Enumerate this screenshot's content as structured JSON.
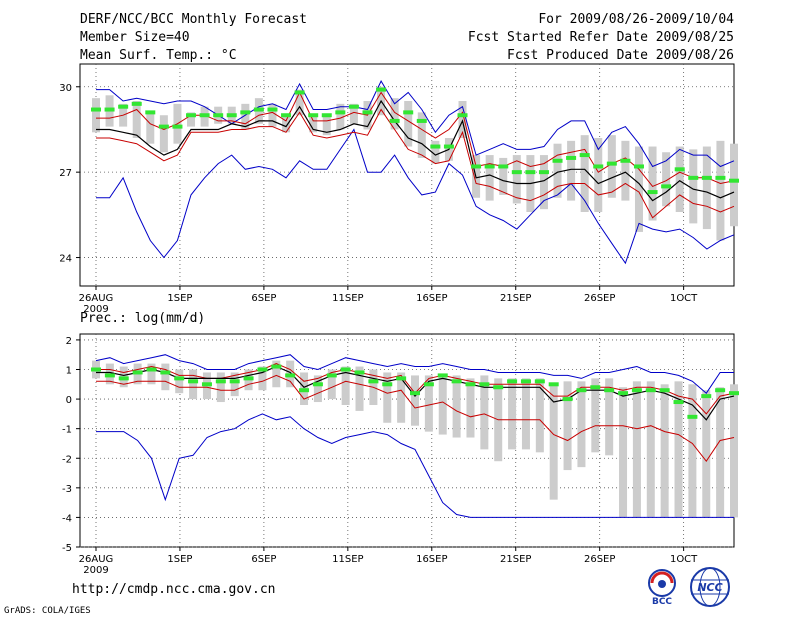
{
  "header": {
    "title": "DERF/NCC/BCC Monthly Forecast",
    "member_size": "Member Size=40",
    "variable": "Mean Surf. Temp.: °C",
    "period": "For 2009/08/26-2009/10/04",
    "fcst_started": "Fcst Started Refer Date 2009/08/25",
    "fcst_produced": "Fcst Produced Date 2009/08/26"
  },
  "footer": {
    "url": "http://cmdp.ncc.cma.gov.cn",
    "credit": "GrADS: COLA/IGES"
  },
  "logos": {
    "bcc_text": "BCC",
    "ncc_text": "NCC"
  },
  "colors": {
    "max_min": "#0000c8",
    "spread": "#c80000",
    "mean": "#000000",
    "median": "#32e632",
    "box": "#cccccc"
  },
  "chart_data": [
    {
      "type": "line",
      "title": "Mean Surf. Temp.: °C",
      "ylabel": "°C",
      "ylim": [
        23,
        30.8
      ],
      "yticks": [
        24,
        27,
        30
      ],
      "ytick_labels": [
        "24",
        "27",
        "30"
      ],
      "xticks": [
        0,
        5,
        10,
        15,
        20,
        25,
        30,
        35
      ],
      "xtick_labels": [
        "26AUG",
        "1SEP",
        "6SEP",
        "11SEP",
        "16SEP",
        "21SEP",
        "26SEP",
        "1OCT"
      ],
      "xsub_label": "2009",
      "days": 40,
      "series": [
        {
          "name": "max",
          "role": "max",
          "values": [
            29.9,
            29.9,
            29.5,
            29.6,
            29.5,
            29.4,
            29.5,
            29.5,
            29.3,
            29.0,
            28.7,
            29.0,
            29.3,
            29.4,
            29.2,
            30.1,
            29.2,
            29.2,
            29.3,
            29.3,
            29.2,
            30.2,
            29.4,
            29.8,
            29.2,
            28.4,
            29.0,
            29.3,
            27.6,
            27.8,
            28.0,
            27.8,
            27.8,
            27.9,
            28.5,
            28.8,
            28.8,
            27.8,
            28.4,
            28.6,
            28.0,
            27.2,
            27.4,
            27.8,
            27.6,
            27.6,
            27.2,
            27.4
          ]
        },
        {
          "name": "upper",
          "role": "spread",
          "values": [
            28.9,
            28.9,
            29.0,
            29.2,
            28.7,
            28.5,
            28.7,
            29.0,
            29.0,
            28.8,
            28.8,
            28.7,
            29.0,
            29.1,
            28.8,
            29.8,
            28.8,
            28.8,
            28.9,
            29.1,
            29.0,
            29.8,
            29.1,
            28.8,
            28.5,
            28.2,
            28.5,
            29.1,
            27.2,
            27.3,
            27.2,
            27.4,
            27.2,
            27.3,
            27.6,
            27.7,
            27.8,
            27.0,
            27.3,
            27.5,
            27.1,
            26.5,
            26.7,
            27.0,
            26.8,
            26.8,
            26.6,
            26.7
          ]
        },
        {
          "name": "mean",
          "role": "mean",
          "values": [
            28.5,
            28.5,
            28.4,
            28.3,
            27.9,
            27.6,
            27.8,
            28.5,
            28.5,
            28.5,
            28.7,
            28.6,
            28.8,
            28.8,
            28.6,
            29.3,
            28.5,
            28.4,
            28.5,
            28.7,
            28.6,
            29.5,
            28.8,
            28.2,
            28.0,
            27.6,
            27.8,
            28.8,
            26.8,
            26.9,
            26.7,
            26.6,
            26.6,
            26.7,
            27.0,
            27.1,
            27.1,
            26.6,
            26.8,
            27.0,
            26.6,
            26.0,
            26.3,
            26.7,
            26.4,
            26.3,
            26.1,
            26.3
          ]
        },
        {
          "name": "lower",
          "role": "spread",
          "values": [
            28.2,
            28.2,
            28.1,
            28.0,
            27.7,
            27.4,
            27.6,
            28.4,
            28.4,
            28.4,
            28.5,
            28.5,
            28.6,
            28.6,
            28.4,
            29.1,
            28.3,
            28.2,
            28.3,
            28.4,
            28.3,
            29.2,
            28.5,
            27.8,
            27.6,
            27.3,
            27.4,
            28.4,
            26.6,
            26.5,
            26.3,
            26.1,
            26.0,
            26.2,
            26.5,
            26.6,
            26.6,
            26.2,
            26.3,
            26.6,
            26.3,
            25.4,
            25.8,
            26.2,
            25.9,
            25.8,
            25.6,
            25.8
          ]
        },
        {
          "name": "min",
          "role": "min",
          "values": [
            26.1,
            26.1,
            26.8,
            25.6,
            24.6,
            24.0,
            24.6,
            26.2,
            26.8,
            27.3,
            27.6,
            27.1,
            27.2,
            27.1,
            26.8,
            27.4,
            27.1,
            27.1,
            27.8,
            28.5,
            27.0,
            27.0,
            27.6,
            26.8,
            26.2,
            26.3,
            27.3,
            26.9,
            25.8,
            25.5,
            25.3,
            25.0,
            25.5,
            26.0,
            26.2,
            26.6,
            26.0,
            25.2,
            24.5,
            23.8,
            25.2,
            25.0,
            24.9,
            25.0,
            24.7,
            24.3,
            24.6,
            24.8,
            25.2
          ]
        },
        {
          "name": "median",
          "role": "median",
          "values": [
            29.2,
            29.2,
            29.3,
            29.4,
            29.1,
            28.6,
            28.6,
            29.0,
            29.0,
            29.0,
            29.0,
            29.1,
            29.2,
            29.2,
            29.0,
            29.8,
            29.0,
            29.0,
            29.1,
            29.3,
            29.1,
            29.9,
            28.8,
            29.1,
            28.8,
            27.9,
            27.9,
            29.0,
            27.2,
            27.2,
            27.2,
            27.0,
            27.0,
            27.0,
            27.4,
            27.5,
            27.6,
            27.2,
            27.3,
            27.4,
            27.2,
            26.3,
            26.5,
            27.1,
            26.8,
            26.8,
            26.8,
            26.7
          ]
        },
        {
          "name": "box_low",
          "role": "box",
          "values": [
            28.4,
            28.6,
            28.6,
            28.2,
            28.0,
            27.7,
            28.0,
            28.6,
            28.6,
            28.7,
            28.7,
            28.5,
            28.7,
            28.6,
            28.4,
            29.0,
            28.4,
            28.3,
            28.5,
            28.7,
            28.5,
            29.0,
            28.5,
            27.9,
            27.5,
            27.3,
            27.4,
            28.2,
            26.1,
            26.0,
            26.2,
            25.9,
            25.6,
            25.7,
            26.1,
            26.0,
            25.6,
            25.6,
            26.1,
            26.0,
            24.9,
            25.3,
            25.8,
            25.6,
            25.2,
            25.0,
            24.6,
            25.1,
            25.4
          ]
        },
        {
          "name": "box_high",
          "role": "box",
          "values": [
            29.6,
            29.7,
            29.4,
            29.5,
            29.1,
            29.0,
            29.4,
            29.1,
            29.3,
            29.3,
            29.3,
            29.4,
            29.6,
            29.4,
            29.0,
            29.9,
            29.0,
            29.0,
            29.4,
            29.4,
            29.5,
            30.0,
            29.6,
            29.5,
            29.1,
            28.1,
            28.2,
            29.5,
            27.6,
            27.6,
            27.5,
            27.6,
            27.6,
            27.6,
            28.0,
            28.1,
            28.3,
            28.2,
            28.3,
            28.1,
            27.9,
            27.9,
            27.7,
            27.9,
            27.8,
            27.9,
            28.1,
            28.0,
            28.0
          ]
        }
      ]
    },
    {
      "type": "line",
      "title": "Prec.: log(mm/d)",
      "ylabel": "log(mm/d)",
      "ylim": [
        -5,
        2.2
      ],
      "yticks": [
        -5,
        -4,
        -3,
        -2,
        -1,
        0,
        1,
        2
      ],
      "ytick_labels": [
        "-5",
        "-4",
        "-3",
        "-2",
        "-1",
        "0",
        "1",
        "2"
      ],
      "xticks": [
        0,
        5,
        10,
        15,
        20,
        25,
        30,
        35
      ],
      "xtick_labels": [
        "26AUG",
        "1SEP",
        "6SEP",
        "11SEP",
        "16SEP",
        "21SEP",
        "26SEP",
        "1OCT"
      ],
      "xsub_label": "2009",
      "days": 40,
      "series": [
        {
          "name": "max",
          "role": "max",
          "values": [
            1.3,
            1.4,
            1.2,
            1.3,
            1.4,
            1.5,
            1.3,
            1.2,
            1.0,
            1.0,
            1.0,
            1.2,
            1.3,
            1.4,
            1.5,
            1.1,
            1.0,
            1.2,
            1.4,
            1.3,
            1.2,
            1.1,
            1.2,
            1.1,
            1.1,
            1.2,
            1.1,
            1.0,
            1.0,
            0.9,
            0.9,
            0.9,
            0.9,
            0.8,
            0.8,
            0.7,
            0.9,
            0.9,
            1.0,
            1.1,
            0.9,
            0.9,
            0.8,
            0.6,
            0.2,
            0.9,
            0.9
          ]
        },
        {
          "name": "upper",
          "role": "spread",
          "values": [
            1.0,
            1.0,
            0.9,
            1.0,
            1.1,
            1.0,
            0.8,
            0.8,
            0.7,
            0.7,
            0.8,
            0.9,
            1.0,
            1.2,
            1.0,
            0.6,
            0.7,
            0.9,
            1.0,
            0.9,
            0.8,
            0.7,
            0.8,
            0.2,
            0.7,
            0.8,
            0.7,
            0.6,
            0.5,
            0.5,
            0.5,
            0.5,
            0.5,
            0.1,
            0.1,
            0.4,
            0.4,
            0.4,
            0.3,
            0.4,
            0.4,
            0.3,
            0.1,
            0.0,
            -0.5,
            0.1,
            0.2
          ]
        },
        {
          "name": "mean",
          "role": "mean",
          "values": [
            0.9,
            0.9,
            0.8,
            0.9,
            1.0,
            0.9,
            0.7,
            0.7,
            0.7,
            0.7,
            0.7,
            0.8,
            0.9,
            1.1,
            0.9,
            0.4,
            0.6,
            0.8,
            0.9,
            0.8,
            0.7,
            0.6,
            0.7,
            0.1,
            0.6,
            0.7,
            0.6,
            0.5,
            0.4,
            0.4,
            0.4,
            0.4,
            0.4,
            -0.1,
            0.0,
            0.3,
            0.3,
            0.3,
            0.1,
            0.2,
            0.3,
            0.2,
            0.0,
            -0.2,
            -0.7,
            0.0,
            0.1
          ]
        },
        {
          "name": "lower",
          "role": "spread",
          "values": [
            0.6,
            0.6,
            0.5,
            0.6,
            0.6,
            0.6,
            0.4,
            0.4,
            0.4,
            0.3,
            0.3,
            0.5,
            0.6,
            0.8,
            0.6,
            0.0,
            0.2,
            0.4,
            0.6,
            0.5,
            0.4,
            0.2,
            0.3,
            -0.3,
            -0.2,
            -0.1,
            -0.4,
            -0.6,
            -0.5,
            -0.7,
            -0.7,
            -0.7,
            -0.7,
            -1.2,
            -1.4,
            -1.1,
            -0.9,
            -0.9,
            -0.9,
            -1.0,
            -0.9,
            -1.1,
            -1.2,
            -1.5,
            -2.1,
            -1.4,
            -1.3
          ]
        },
        {
          "name": "min",
          "role": "min",
          "values": [
            -1.1,
            -1.1,
            -1.1,
            -1.4,
            -2.0,
            -3.4,
            -2.0,
            -1.9,
            -1.3,
            -1.1,
            -1.0,
            -0.7,
            -0.5,
            -0.7,
            -0.6,
            -1.0,
            -1.3,
            -1.5,
            -1.3,
            -1.2,
            -1.1,
            -1.2,
            -1.5,
            -1.7,
            -2.6,
            -3.5,
            -3.9,
            -4.0,
            -4.0,
            -4.0,
            -4.0,
            -4.0,
            -4.0,
            -4.0,
            -4.0,
            -4.0,
            -4.0,
            -4.0,
            -4.0,
            -4.0,
            -4.0,
            -4.0,
            -4.0,
            -4.0,
            -4.0,
            -4.0,
            -4.0
          ]
        },
        {
          "name": "median",
          "role": "median",
          "values": [
            1.0,
            0.8,
            0.7,
            0.9,
            1.0,
            0.9,
            0.7,
            0.6,
            0.5,
            0.6,
            0.6,
            0.7,
            1.0,
            1.1,
            0.8,
            0.3,
            0.5,
            0.8,
            1.0,
            0.9,
            0.6,
            0.5,
            0.7,
            0.2,
            0.5,
            0.8,
            0.6,
            0.5,
            0.5,
            0.4,
            0.6,
            0.6,
            0.6,
            0.5,
            0.0,
            0.3,
            0.4,
            0.3,
            0.2,
            0.3,
            0.3,
            0.3,
            -0.1,
            -0.6,
            0.1,
            0.3,
            0.2
          ]
        },
        {
          "name": "box_low",
          "role": "box",
          "values": [
            0.7,
            0.5,
            0.4,
            0.5,
            0.5,
            0.3,
            0.2,
            0.0,
            0.0,
            -0.1,
            0.1,
            0.3,
            0.3,
            0.4,
            0.4,
            -0.2,
            -0.1,
            0.0,
            -0.2,
            -0.4,
            -0.2,
            -0.8,
            -0.8,
            -0.9,
            -1.1,
            -1.2,
            -1.3,
            -1.3,
            -1.7,
            -2.1,
            -1.7,
            -1.7,
            -1.8,
            -3.4,
            -2.4,
            -2.3,
            -1.8,
            -1.9,
            -4.0,
            -4.0,
            -4.0,
            -4.0,
            -4.0,
            -4.0,
            -4.0,
            -4.0,
            -4.0
          ]
        },
        {
          "name": "box_high",
          "role": "box",
          "values": [
            1.3,
            1.2,
            1.1,
            1.2,
            1.2,
            1.2,
            1.0,
            1.0,
            0.9,
            0.9,
            0.9,
            1.0,
            1.1,
            1.3,
            1.3,
            0.9,
            0.8,
            1.0,
            1.1,
            1.1,
            1.0,
            0.9,
            0.9,
            0.8,
            0.8,
            0.8,
            0.8,
            0.7,
            0.8,
            0.7,
            0.7,
            0.7,
            0.7,
            0.5,
            0.6,
            0.6,
            0.7,
            0.7,
            0.4,
            0.6,
            0.6,
            0.5,
            0.6,
            0.5,
            0.3,
            0.4,
            0.5
          ]
        }
      ]
    }
  ]
}
